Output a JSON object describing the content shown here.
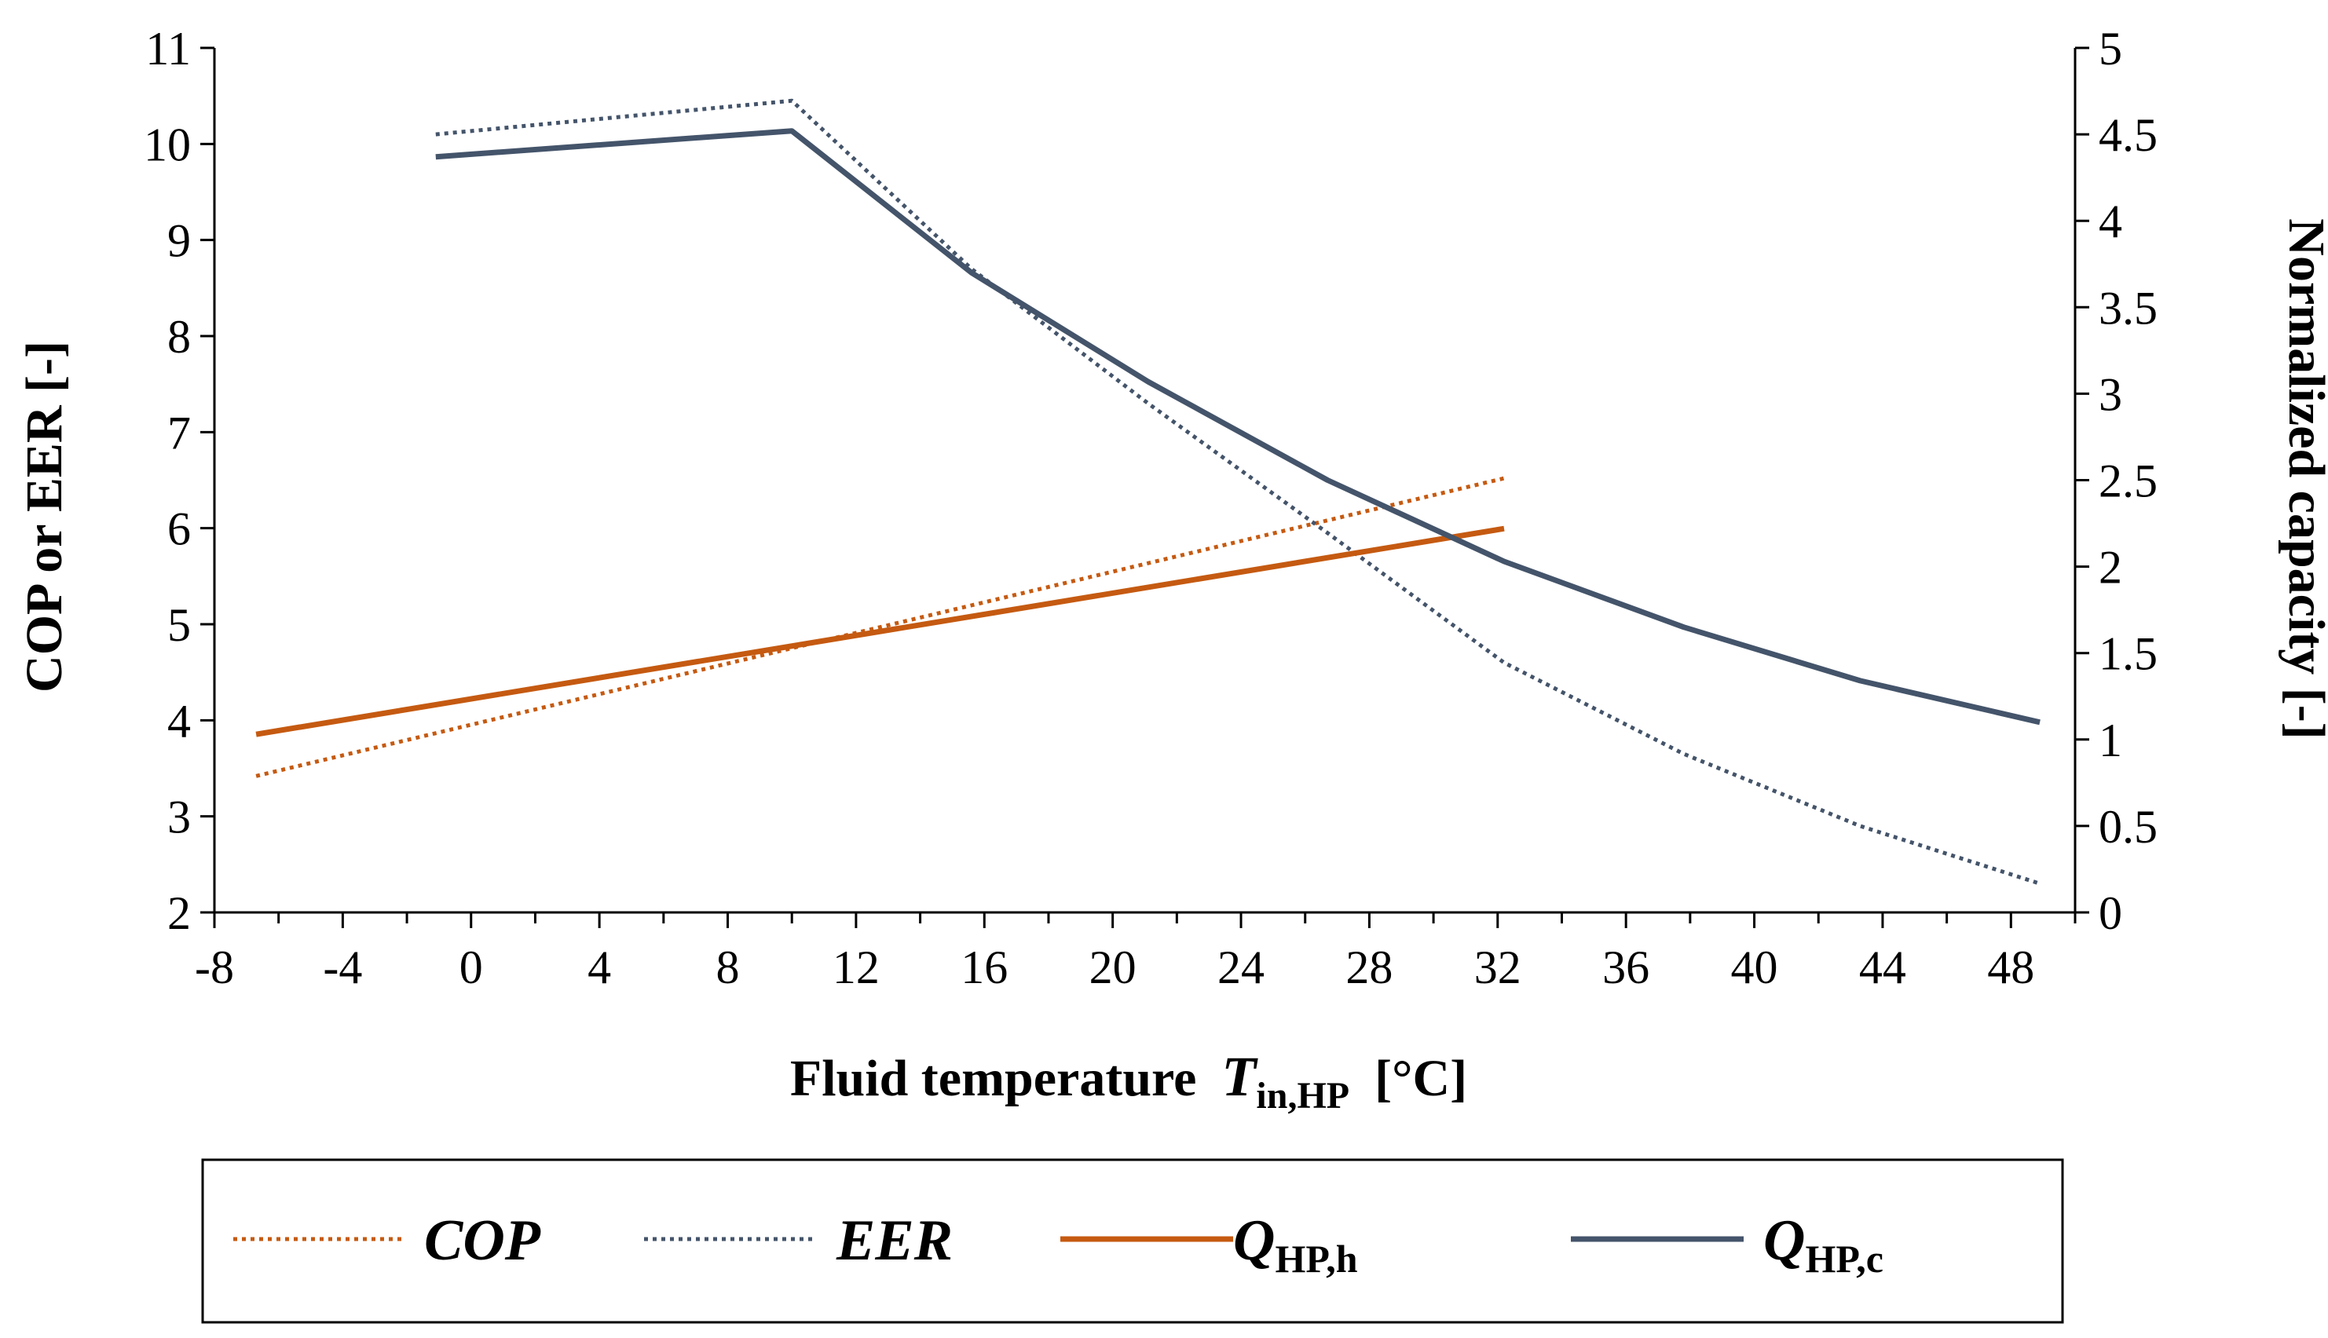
{
  "chart_data": {
    "type": "line",
    "xlabel": {
      "prefix": "Fluid temperature",
      "var": "T",
      "sub": "in,HP",
      "unit": "[°C]"
    },
    "ylabel_left": "COP or EER [-]",
    "ylabel_right": "Normalized capacity [-]",
    "xlim": [
      -8,
      50
    ],
    "xticks": [
      "-8",
      "-4",
      "0",
      "4",
      "8",
      "12",
      "16",
      "20",
      "24",
      "28",
      "32",
      "36",
      "40",
      "44",
      "48"
    ],
    "ylim_left": [
      2,
      11
    ],
    "yticks_left": [
      "2",
      "3",
      "4",
      "5",
      "6",
      "7",
      "8",
      "9",
      "10",
      "11"
    ],
    "ylim_right": [
      0,
      5
    ],
    "yticks_right": [
      "0",
      "0.5",
      "1",
      "1.5",
      "2",
      "2.5",
      "3",
      "3.5",
      "4",
      "4.5",
      "5"
    ],
    "colors": {
      "orange": "#C55A11",
      "slate": "#44546A"
    },
    "series": [
      {
        "name": "COP",
        "sub": "",
        "axis": "left",
        "style": "dotted",
        "color": "#C55A11",
        "x": [
          -6.7,
          32.2
        ],
        "y": [
          3.42,
          6.52
        ]
      },
      {
        "name": "EER",
        "sub": "",
        "axis": "left",
        "style": "dotted",
        "color": "#44546A",
        "x": [
          -1.1,
          10.0,
          15.6,
          21.1,
          26.7,
          32.2,
          37.8,
          43.3,
          48.9
        ],
        "y": [
          10.1,
          10.45,
          8.7,
          7.3,
          5.95,
          4.6,
          3.65,
          2.9,
          2.3
        ]
      },
      {
        "name": "Q",
        "sub": "HP,h",
        "axis": "right",
        "style": "solid",
        "color": "#C55A11",
        "x": [
          -6.7,
          32.2
        ],
        "y": [
          1.03,
          2.22
        ]
      },
      {
        "name": "Q",
        "sub": "HP,c",
        "axis": "right",
        "style": "solid",
        "color": "#44546A",
        "x": [
          -1.1,
          10.0,
          15.6,
          21.1,
          26.7,
          32.2,
          37.8,
          43.3,
          48.9
        ],
        "y": [
          4.37,
          4.52,
          3.7,
          3.07,
          2.5,
          2.03,
          1.65,
          1.34,
          1.1
        ]
      }
    ],
    "grid": false,
    "legend_position": "bottom"
  }
}
